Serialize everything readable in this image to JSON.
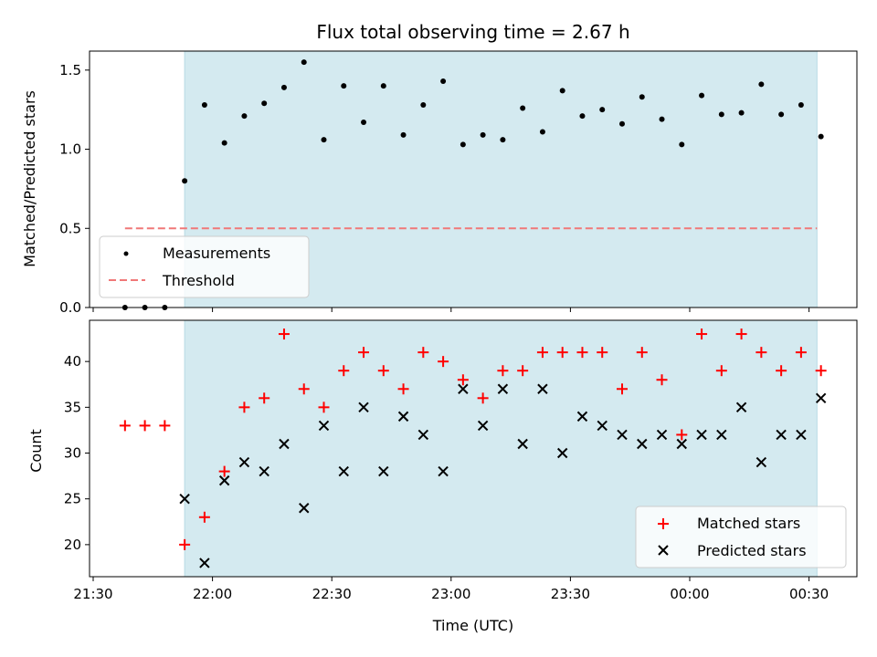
{
  "chart_data": [
    {
      "type": "scatter",
      "title": "Flux total observing time = 2.67 h",
      "xlabel": "",
      "ylabel": "Matched/Predicted stars",
      "ylim": [
        0,
        1.62
      ],
      "yticks": [
        "0.0",
        "0.5",
        "1.0",
        "1.5"
      ],
      "shaded_region": {
        "start": "21:53",
        "end": "00:32",
        "color": "#d4eaf0"
      },
      "legend_position": "lower-left",
      "series": [
        {
          "name": "Measurements",
          "marker": "dot",
          "color": "#000000",
          "x": [
            "21:38",
            "21:43",
            "21:48",
            "21:53",
            "21:58",
            "22:03",
            "22:08",
            "22:13",
            "22:18",
            "22:23",
            "22:28",
            "22:33",
            "22:38",
            "22:43",
            "22:48",
            "22:53",
            "22:58",
            "23:03",
            "23:08",
            "23:13",
            "23:18",
            "23:23",
            "23:28",
            "23:33",
            "23:38",
            "23:43",
            "23:48",
            "23:53",
            "23:58",
            "00:03",
            "00:08",
            "00:13",
            "00:18",
            "00:23",
            "00:28",
            "00:33"
          ],
          "y": [
            0.0,
            0.0,
            0.0,
            0.8,
            1.28,
            1.04,
            1.21,
            1.29,
            1.39,
            1.55,
            1.06,
            1.4,
            1.17,
            1.4,
            1.09,
            1.28,
            1.43,
            1.03,
            1.09,
            1.06,
            1.26,
            1.11,
            1.37,
            1.21,
            1.25,
            1.16,
            1.33,
            1.19,
            1.03,
            1.34,
            1.22,
            1.23,
            1.41,
            1.22,
            1.28,
            1.08
          ]
        },
        {
          "name": "Threshold",
          "style": "dashed",
          "color": "#f07878",
          "x": [
            "21:38",
            "00:32"
          ],
          "y": [
            0.5,
            0.5
          ]
        }
      ]
    },
    {
      "type": "scatter",
      "title": "",
      "xlabel": "Time (UTC)",
      "ylabel": "Count",
      "ylim": [
        16.5,
        44.5
      ],
      "yticks": [
        "20",
        "25",
        "30",
        "35",
        "40"
      ],
      "xticks": [
        "21:30",
        "22:00",
        "22:30",
        "23:00",
        "23:30",
        "00:00",
        "00:30"
      ],
      "shaded_region": {
        "start": "21:53",
        "end": "00:32",
        "color": "#d4eaf0"
      },
      "legend_position": "lower-right",
      "series": [
        {
          "name": "Matched stars",
          "marker": "plus",
          "color": "#ff0000",
          "x": [
            "21:38",
            "21:43",
            "21:48",
            "21:53",
            "21:58",
            "22:03",
            "22:08",
            "22:13",
            "22:18",
            "22:23",
            "22:28",
            "22:33",
            "22:38",
            "22:43",
            "22:48",
            "22:53",
            "22:58",
            "23:03",
            "23:08",
            "23:13",
            "23:18",
            "23:23",
            "23:28",
            "23:33",
            "23:38",
            "23:43",
            "23:48",
            "23:53",
            "23:58",
            "00:03",
            "00:08",
            "00:13",
            "00:18",
            "00:23",
            "00:28",
            "00:33"
          ],
          "y": [
            33,
            33,
            33,
            20,
            23,
            28,
            35,
            36,
            43,
            37,
            35,
            39,
            41,
            39,
            37,
            41,
            40,
            38,
            36,
            39,
            39,
            41,
            41,
            41,
            41,
            37,
            41,
            38,
            32,
            43,
            39,
            43,
            41,
            39,
            41,
            39
          ]
        },
        {
          "name": "Predicted stars",
          "marker": "x",
          "color": "#000000",
          "x": [
            "21:53",
            "21:58",
            "22:03",
            "22:08",
            "22:13",
            "22:18",
            "22:23",
            "22:28",
            "22:33",
            "22:38",
            "22:43",
            "22:48",
            "22:53",
            "22:58",
            "23:03",
            "23:08",
            "23:13",
            "23:18",
            "23:23",
            "23:28",
            "23:33",
            "23:38",
            "23:43",
            "23:48",
            "23:53",
            "23:58",
            "00:03",
            "00:08",
            "00:13",
            "00:18",
            "00:23",
            "00:28",
            "00:33"
          ],
          "y": [
            25,
            18,
            27,
            29,
            28,
            31,
            24,
            33,
            28,
            35,
            28,
            34,
            32,
            28,
            37,
            33,
            37,
            31,
            37,
            30,
            34,
            33,
            32,
            31,
            32,
            31,
            32,
            32,
            35,
            29,
            32,
            32,
            36
          ]
        }
      ]
    }
  ]
}
